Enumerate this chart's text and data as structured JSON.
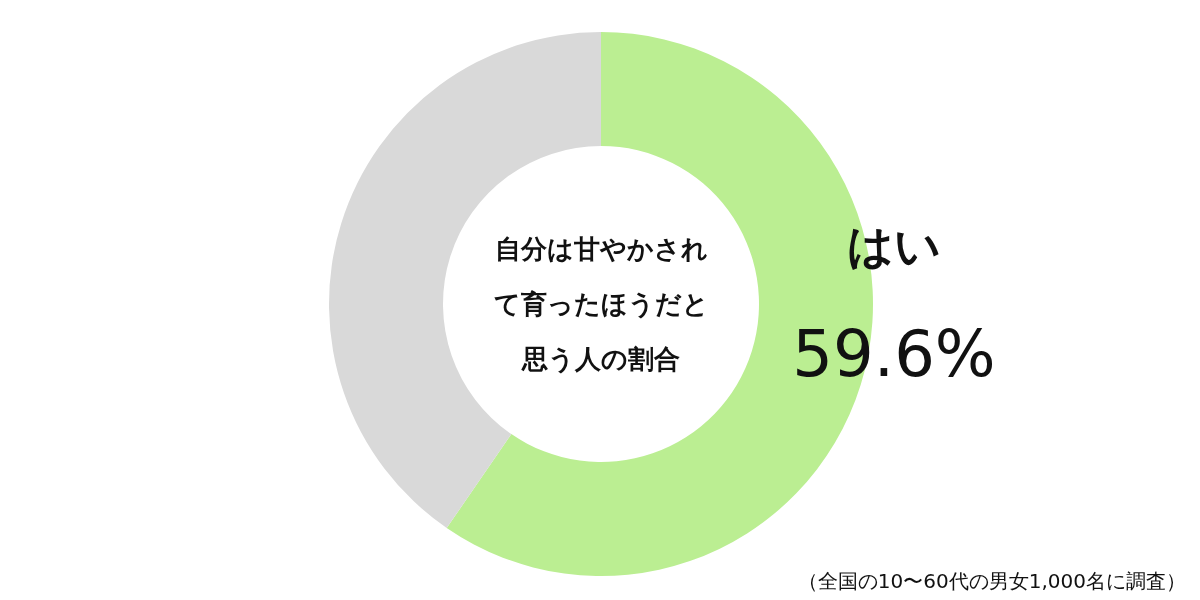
{
  "chart_data": {
    "type": "donut",
    "title": "自分は甘やかされて育ったほうだと思う人の割合",
    "categories": [
      "はい",
      null
    ],
    "values": [
      59.6,
      40.4
    ],
    "colors": [
      "#bbee92",
      "#d9d9d9"
    ],
    "value_labels": [
      "59.6%",
      null
    ],
    "annotations": [
      "（全国の10〜60代の男女1,000名に調査）"
    ]
  }
}
